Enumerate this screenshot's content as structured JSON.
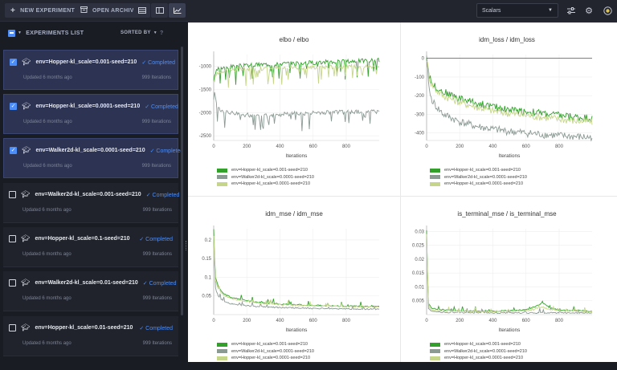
{
  "toolbar": {
    "new_experiment": "NEW EXPERIMENT",
    "open_archive": "OPEN ARCHIVE",
    "view_select": "Scalars"
  },
  "sidebar": {
    "title": "EXPERIMENTS LIST",
    "sorted_by": "SORTED BY",
    "help": "?",
    "experiments": [
      {
        "name": "env=Hopper-kl_scale=0.001-seed=210",
        "status": "✓ Completed",
        "updated": "Updated 6 months ago",
        "iterations": "999 Iterations",
        "selected": true
      },
      {
        "name": "env=Hopper-kl_scale=0.0001-seed=210",
        "status": "✓ Completed",
        "updated": "Updated 6 months ago",
        "iterations": "999 Iterations",
        "selected": true
      },
      {
        "name": "env=Walker2d-kl_scale=0.0001-seed=210",
        "status": "✓ Completed",
        "updated": "Updated 6 months ago",
        "iterations": "999 Iterations",
        "selected": true
      },
      {
        "name": "env=Walker2d-kl_scale=0.001-seed=210",
        "status": "✓ Completed",
        "updated": "Updated 6 months ago",
        "iterations": "999 Iterations",
        "selected": false
      },
      {
        "name": "env=Hopper-kl_scale=0.1-seed=210",
        "status": "✓ Completed",
        "updated": "Updated 6 months ago",
        "iterations": "999 Iterations",
        "selected": false
      },
      {
        "name": "env=Walker2d-kl_scale=0.01-seed=210",
        "status": "✓ Completed",
        "updated": "Updated 6 months ago",
        "iterations": "999 Iterations",
        "selected": false
      },
      {
        "name": "env=Hopper-kl_scale=0.01-seed=210",
        "status": "✓ Completed",
        "updated": "Updated 6 months ago",
        "iterations": "999 Iterations",
        "selected": false
      }
    ]
  },
  "colors": {
    "hopper_0001": "#33a02c",
    "walker_00001": "#8c9a94",
    "hopper_00001": "#c5d68a"
  },
  "chart_data": [
    {
      "type": "line",
      "title": "elbo / elbo",
      "xlabel": "Iterations",
      "xlim": [
        0,
        999
      ],
      "ylim": [
        -2600,
        -750
      ],
      "xticks": [
        0,
        200,
        400,
        600,
        800
      ],
      "yticks": [
        -1000,
        -1500,
        -2000,
        -2500
      ],
      "series": [
        {
          "name": "env=Hopper-kl_scale=0.001-seed=210",
          "x": [
            0,
            20,
            50,
            100,
            200,
            300,
            400,
            500,
            600,
            700,
            800,
            900,
            999
          ],
          "values": [
            -1300,
            -1080,
            -1030,
            -1010,
            -985,
            -960,
            -945,
            -930,
            -920,
            -905,
            -895,
            -880,
            -870
          ]
        },
        {
          "name": "env=Walker2d-kl_scale=0.0001-seed=210",
          "x": [
            0,
            20,
            50,
            100,
            200,
            300,
            400,
            500,
            600,
            700,
            800,
            900,
            999
          ],
          "values": [
            -1500,
            -1850,
            -1960,
            -2010,
            -2050,
            -2060,
            -2040,
            -2020,
            -2010,
            -2000,
            -1990,
            -1980,
            -1975
          ]
        },
        {
          "name": "env=Hopper-kl_scale=0.0001-seed=210",
          "x": [
            0,
            20,
            50,
            100,
            200,
            300,
            400,
            500,
            600,
            700,
            800,
            900,
            999
          ],
          "values": [
            -1350,
            -1150,
            -1100,
            -1080,
            -1060,
            -1050,
            -1040,
            -1030,
            -1020,
            -1015,
            -1010,
            -1005,
            -1000
          ]
        }
      ]
    },
    {
      "type": "line",
      "title": "idm_loss / idm_loss",
      "xlabel": "Iterations",
      "xlim": [
        0,
        999
      ],
      "ylim": [
        -440,
        20
      ],
      "xticks": [
        0,
        200,
        400,
        600,
        800
      ],
      "yticks": [
        0,
        -100,
        -200,
        -300,
        -400
      ],
      "series": [
        {
          "name": "env=Hopper-kl_scale=0.001-seed=210",
          "x": [
            0,
            20,
            50,
            100,
            200,
            300,
            400,
            500,
            600,
            700,
            800,
            900,
            999
          ],
          "values": [
            0,
            -110,
            -150,
            -180,
            -215,
            -240,
            -260,
            -275,
            -285,
            -295,
            -305,
            -315,
            -320
          ]
        },
        {
          "name": "env=Walker2d-kl_scale=0.0001-seed=210",
          "x": [
            0,
            20,
            50,
            100,
            200,
            300,
            400,
            500,
            600,
            700,
            800,
            900,
            999
          ],
          "values": [
            0,
            -200,
            -250,
            -300,
            -340,
            -365,
            -380,
            -392,
            -400,
            -408,
            -415,
            -420,
            -425
          ]
        },
        {
          "name": "env=Hopper-kl_scale=0.0001-seed=210",
          "x": [
            0,
            20,
            50,
            100,
            200,
            300,
            400,
            500,
            600,
            700,
            800,
            900,
            999
          ],
          "values": [
            0,
            -120,
            -165,
            -200,
            -235,
            -260,
            -280,
            -295,
            -305,
            -315,
            -325,
            -335,
            -340
          ]
        }
      ]
    },
    {
      "type": "line",
      "title": "idm_mse / idm_mse",
      "xlabel": "Iterations",
      "xlim": [
        0,
        999
      ],
      "ylim": [
        0,
        0.23
      ],
      "xticks": [
        0,
        200,
        400,
        600,
        800
      ],
      "yticks": [
        0.2,
        0.15,
        0.1,
        0.05
      ],
      "series": [
        {
          "name": "env=Hopper-kl_scale=0.001-seed=210",
          "x": [
            0,
            10,
            30,
            60,
            100,
            200,
            300,
            400,
            500,
            600,
            700,
            800,
            900,
            999
          ],
          "values": [
            0.22,
            0.1,
            0.07,
            0.055,
            0.045,
            0.035,
            0.03,
            0.027,
            0.025,
            0.023,
            0.022,
            0.021,
            0.02,
            0.02
          ]
        },
        {
          "name": "env=Walker2d-kl_scale=0.0001-seed=210",
          "x": [
            0,
            10,
            30,
            60,
            100,
            200,
            300,
            400,
            500,
            600,
            700,
            800,
            900,
            999
          ],
          "values": [
            0.2,
            0.07,
            0.045,
            0.035,
            0.028,
            0.022,
            0.019,
            0.017,
            0.016,
            0.015,
            0.014,
            0.014,
            0.013,
            0.013
          ]
        },
        {
          "name": "env=Hopper-kl_scale=0.0001-seed=210",
          "x": [
            0,
            10,
            30,
            60,
            100,
            200,
            300,
            400,
            500,
            600,
            700,
            800,
            900,
            999
          ],
          "values": [
            0.21,
            0.09,
            0.065,
            0.05,
            0.042,
            0.033,
            0.028,
            0.025,
            0.023,
            0.022,
            0.021,
            0.02,
            0.019,
            0.019
          ]
        }
      ]
    },
    {
      "type": "line",
      "title": "is_terminal_mse / is_terminal_mse",
      "xlabel": "Iterations",
      "xlim": [
        0,
        999
      ],
      "ylim": [
        0,
        0.031
      ],
      "xticks": [
        0,
        200,
        400,
        600,
        800
      ],
      "yticks": [
        0.03,
        0.025,
        0.02,
        0.015,
        0.01,
        0.005
      ],
      "series": [
        {
          "name": "env=Hopper-kl_scale=0.001-seed=210",
          "x": [
            0,
            10,
            30,
            100,
            200,
            300,
            400,
            500,
            600,
            650,
            700,
            750,
            800,
            900,
            999
          ],
          "values": [
            0.03,
            0.004,
            0.002,
            0.0015,
            0.0012,
            0.001,
            0.001,
            0.0012,
            0.0015,
            0.0025,
            0.004,
            0.002,
            0.0015,
            0.0012,
            0.001
          ]
        },
        {
          "name": "env=Walker2d-kl_scale=0.0001-seed=210",
          "x": [
            0,
            10,
            30,
            100,
            200,
            300,
            400,
            500,
            600,
            650,
            700,
            750,
            800,
            900,
            999
          ],
          "values": [
            0.028,
            0.002,
            0.001,
            0.0006,
            0.0005,
            0.0004,
            0.0004,
            0.0004,
            0.0004,
            0.0004,
            0.0004,
            0.0004,
            0.0004,
            0.0004,
            0.0004
          ]
        },
        {
          "name": "env=Hopper-kl_scale=0.0001-seed=210",
          "x": [
            0,
            10,
            30,
            100,
            200,
            300,
            400,
            500,
            600,
            650,
            700,
            750,
            800,
            900,
            999
          ],
          "values": [
            0.029,
            0.003,
            0.0015,
            0.001,
            0.001,
            0.0009,
            0.0009,
            0.001,
            0.0012,
            0.0015,
            0.0025,
            0.0015,
            0.0012,
            0.001,
            0.0009
          ]
        }
      ]
    }
  ]
}
